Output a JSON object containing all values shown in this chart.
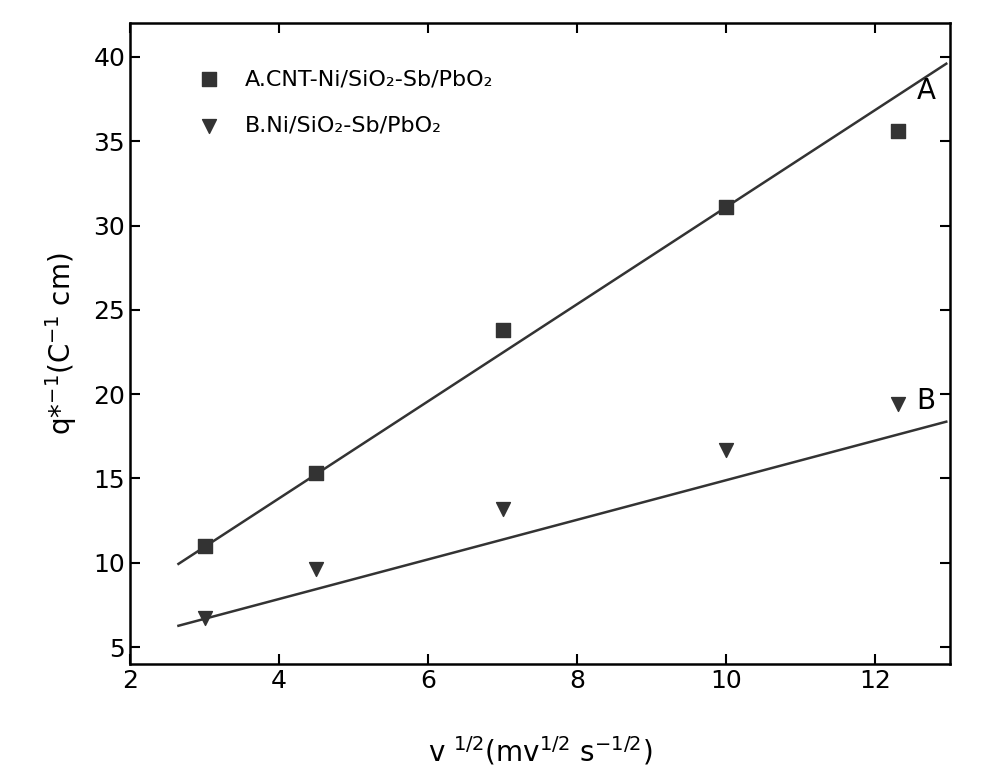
{
  "series_A": {
    "x_points": [
      3.0,
      4.5,
      7.0,
      10.0,
      12.3
    ],
    "y_points": [
      11.0,
      15.3,
      23.8,
      31.1,
      35.6
    ],
    "label": "A.CNT-Ni/SiO₂-Sb/PbO₂",
    "marker": "s",
    "color": "#333333",
    "line_slope": 2.88,
    "line_intercept": 2.3,
    "line_x": [
      2.65,
      12.95
    ],
    "annotation": "A",
    "ann_x": 12.55,
    "ann_y": 38.0
  },
  "series_B": {
    "x_points": [
      3.0,
      4.5,
      7.0,
      10.0,
      12.3
    ],
    "y_points": [
      6.7,
      9.6,
      13.2,
      16.7,
      19.4
    ],
    "label": "B.Ni/SiO₂-Sb/PbO₂",
    "marker": "v",
    "color": "#333333",
    "line_slope": 1.175,
    "line_intercept": 3.15,
    "line_x": [
      2.65,
      12.95
    ],
    "annotation": "B",
    "ann_x": 12.55,
    "ann_y": 19.6
  },
  "xlim": [
    2,
    13.0
  ],
  "ylim": [
    4,
    42
  ],
  "xticks": [
    2,
    4,
    6,
    8,
    10,
    12
  ],
  "yticks": [
    5,
    10,
    15,
    20,
    25,
    30,
    35,
    40
  ],
  "figsize": [
    10.0,
    7.72
  ],
  "dpi": 100,
  "background_color": "#ffffff",
  "marker_size": 10,
  "linewidth": 1.8,
  "tick_fontsize": 18,
  "label_fontsize": 20,
  "legend_fontsize": 16,
  "ann_fontsize": 20
}
